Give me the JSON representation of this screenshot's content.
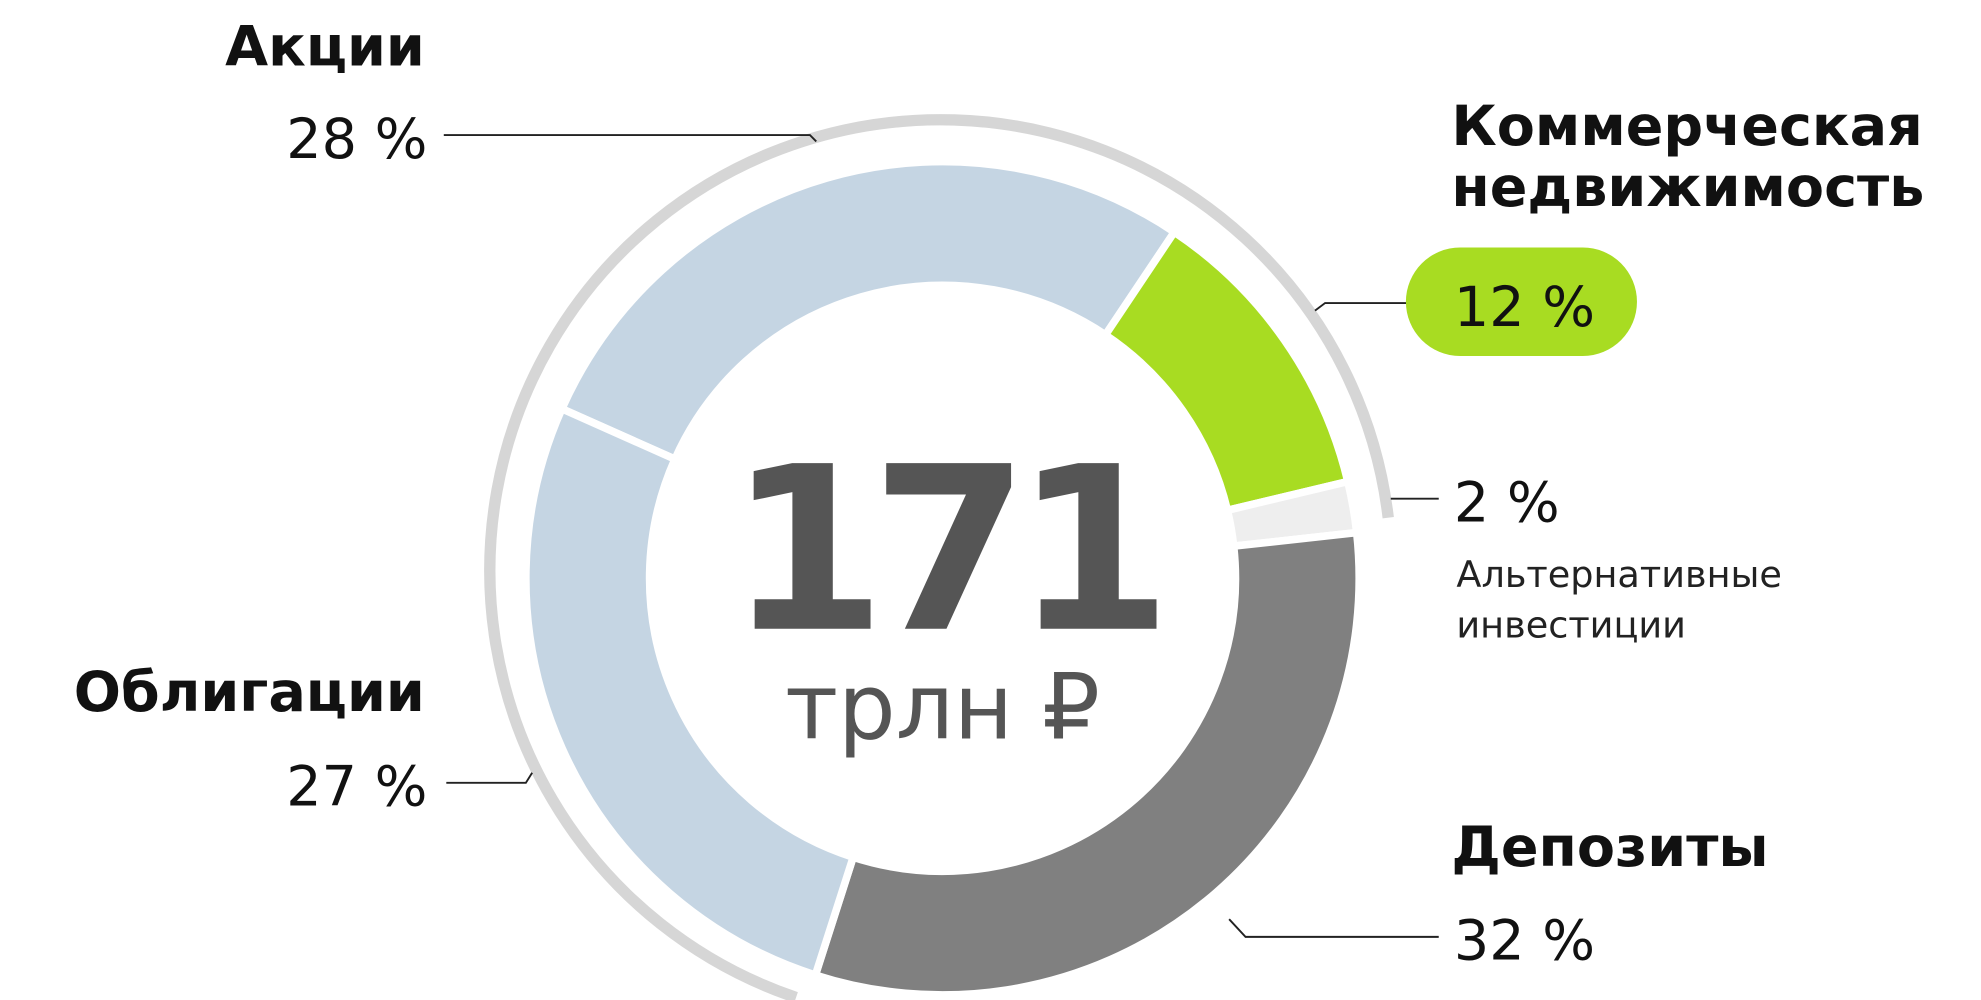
{
  "chart_data": {
    "type": "donut",
    "center_value": "171",
    "center_unit": "трлн ₽",
    "categories": [
      "Акции",
      "Коммерческая недвижимость",
      "Альтернативные инвестиции",
      "Депозиты",
      "Облигации"
    ],
    "values": [
      28,
      12,
      2,
      32,
      27
    ],
    "value_labels": [
      "28 %",
      "12 %",
      "2 %",
      "32 %",
      "27 %"
    ],
    "colors": [
      "#c5d5e3",
      "#a8dc22",
      "#eeeeee",
      "#808080",
      "#c5d5e3"
    ],
    "highlight": 1
  }
}
